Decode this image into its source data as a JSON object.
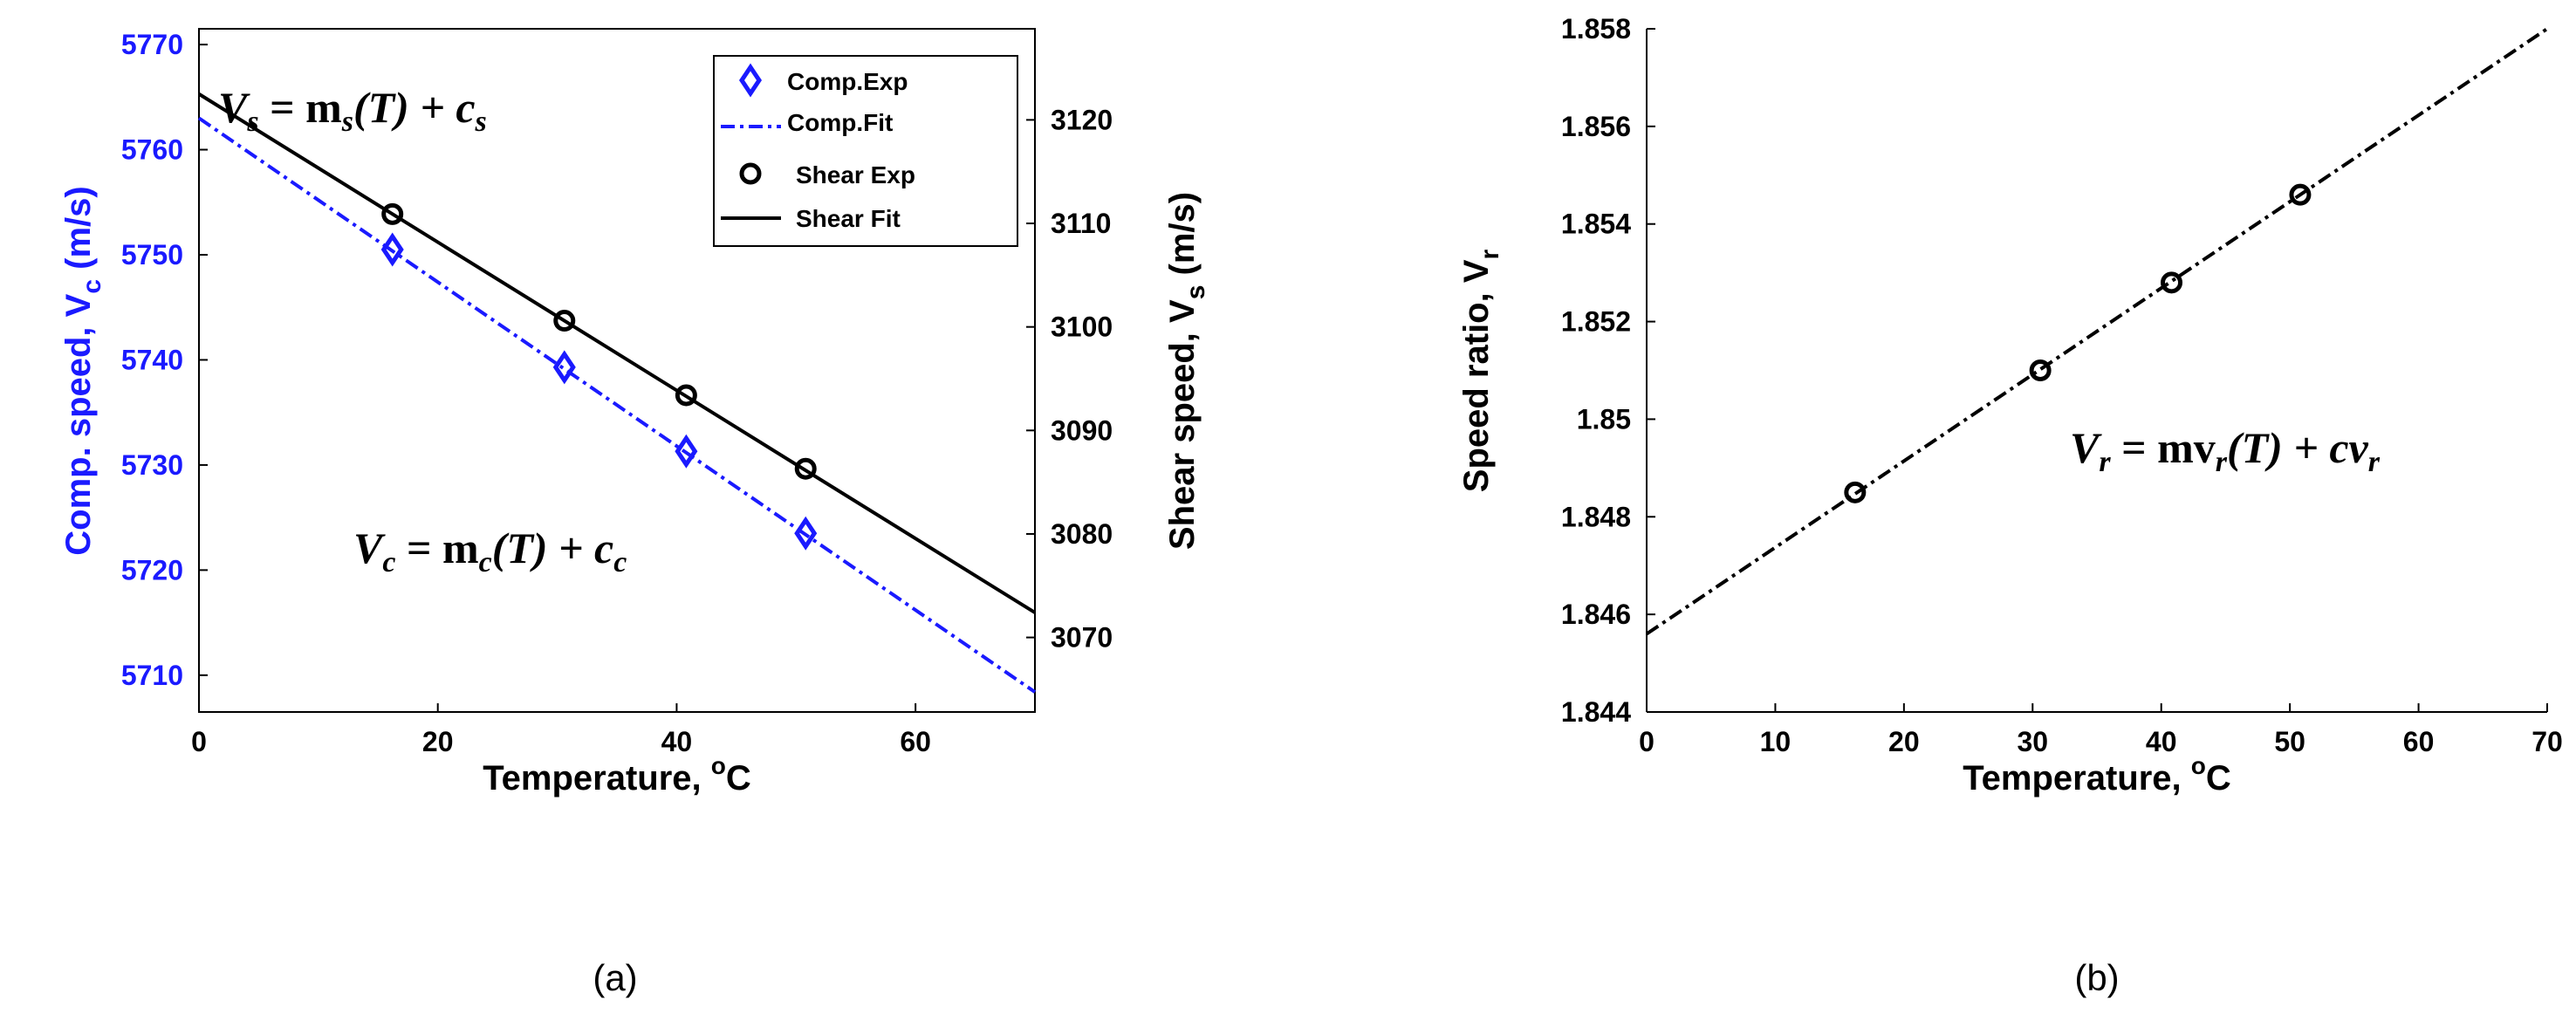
{
  "chart_data": [
    {
      "panel": "(a)",
      "type": "line",
      "xlabel_main": "Temperature, ",
      "xlabel_sup": "o",
      "xlabel_end": "C",
      "xlim": [
        0,
        70
      ],
      "xticks": [
        0,
        20,
        40,
        60
      ],
      "ylabel_left": {
        "main": "Comp. speed, V",
        "sub": "c",
        "end": " (m/s)"
      },
      "ylabel_right": {
        "main": "Shear speed, V",
        "sub": "s",
        "end": " (m/s)"
      },
      "ylim_left": [
        5706.5,
        5771.5
      ],
      "yticks_left": [
        5710,
        5720,
        5730,
        5740,
        5750,
        5760,
        5770
      ],
      "ylim_right": [
        3062.8,
        3128.8
      ],
      "yticks_right": [
        3070,
        3080,
        3090,
        3100,
        3110,
        3120
      ],
      "legend_position": "top-right",
      "series": [
        {
          "name": "Comp.Exp",
          "axis": "left",
          "marker": "diamond",
          "color": "#1a1aff",
          "x": [
            16.2,
            30.6,
            40.8,
            50.8
          ],
          "y": [
            5750.5,
            5739.3,
            5731.3,
            5723.5
          ]
        },
        {
          "name": "Comp.Fit",
          "axis": "left",
          "style": "dash-dot",
          "color": "#1a1aff",
          "x": [
            0,
            70
          ],
          "y": [
            5763,
            5708.4
          ]
        },
        {
          "name": "Shear Exp",
          "axis": "right",
          "marker": "circle",
          "color": "#000000",
          "x": [
            16.2,
            30.6,
            40.8,
            50.8
          ],
          "y": [
            3110.9,
            3100.6,
            3093.4,
            3086.3
          ]
        },
        {
          "name": "Shear Fit",
          "axis": "right",
          "style": "solid",
          "color": "#000000",
          "x": [
            0,
            70
          ],
          "y": [
            3122.5,
            3072.4
          ]
        }
      ],
      "annotations": {
        "vs": {
          "base": "V",
          "sub": "s",
          "rest": " = m",
          "sub2": "s",
          "tail": "(T) + c",
          "sub3": "s"
        },
        "vc": {
          "base": "V",
          "sub": "c",
          "rest": " = m",
          "sub2": "c",
          "tail": "(T) + c",
          "sub3": "c"
        }
      }
    },
    {
      "panel": "(b)",
      "type": "line",
      "xlabel_main": "Temperature, ",
      "xlabel_sup": "o",
      "xlabel_end": "C",
      "xlim": [
        0,
        70
      ],
      "xticks": [
        0,
        10,
        20,
        30,
        40,
        50,
        60,
        70
      ],
      "ylabel": {
        "main": "Speed ratio, V",
        "sub": "r"
      },
      "ylim": [
        1.844,
        1.858
      ],
      "yticks": [
        "1.844",
        "1.846",
        "1.848",
        "1.85",
        "1.852",
        "1.854",
        "1.856",
        "1.858"
      ],
      "series": [
        {
          "name": "",
          "marker": "circle",
          "color": "#000000",
          "x": [
            16.2,
            30.6,
            40.8,
            50.8
          ],
          "y": [
            1.8485,
            1.851,
            1.8528,
            1.8546
          ]
        },
        {
          "name": "",
          "style": "dash-dot",
          "color": "#000000",
          "x": [
            0,
            70
          ],
          "y": [
            1.8456,
            1.858
          ]
        }
      ],
      "annotation": {
        "base": "V",
        "sub": "r",
        "rest": " = mv",
        "sub2": "r",
        "tail": "(T) + cv",
        "sub3": "r"
      }
    }
  ],
  "captions": [
    "(a)",
    "(b)"
  ]
}
